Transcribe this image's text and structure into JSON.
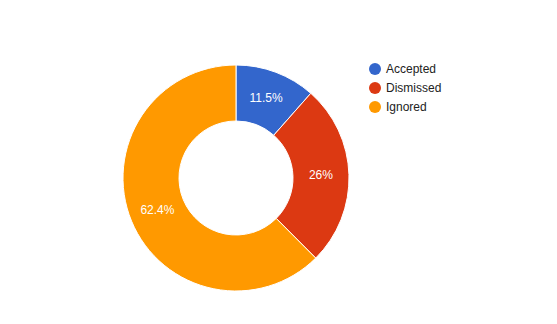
{
  "chart_data": {
    "type": "pie",
    "categories": [
      "Accepted",
      "Dismissed",
      "Ignored"
    ],
    "values": [
      11.5,
      26,
      62.4
    ],
    "value_labels": [
      "11.5%",
      "26%",
      "62.4%"
    ],
    "colors": [
      "#3366cc",
      "#dc3912",
      "#ff9900"
    ],
    "data_labels": true,
    "legend": "right"
  }
}
